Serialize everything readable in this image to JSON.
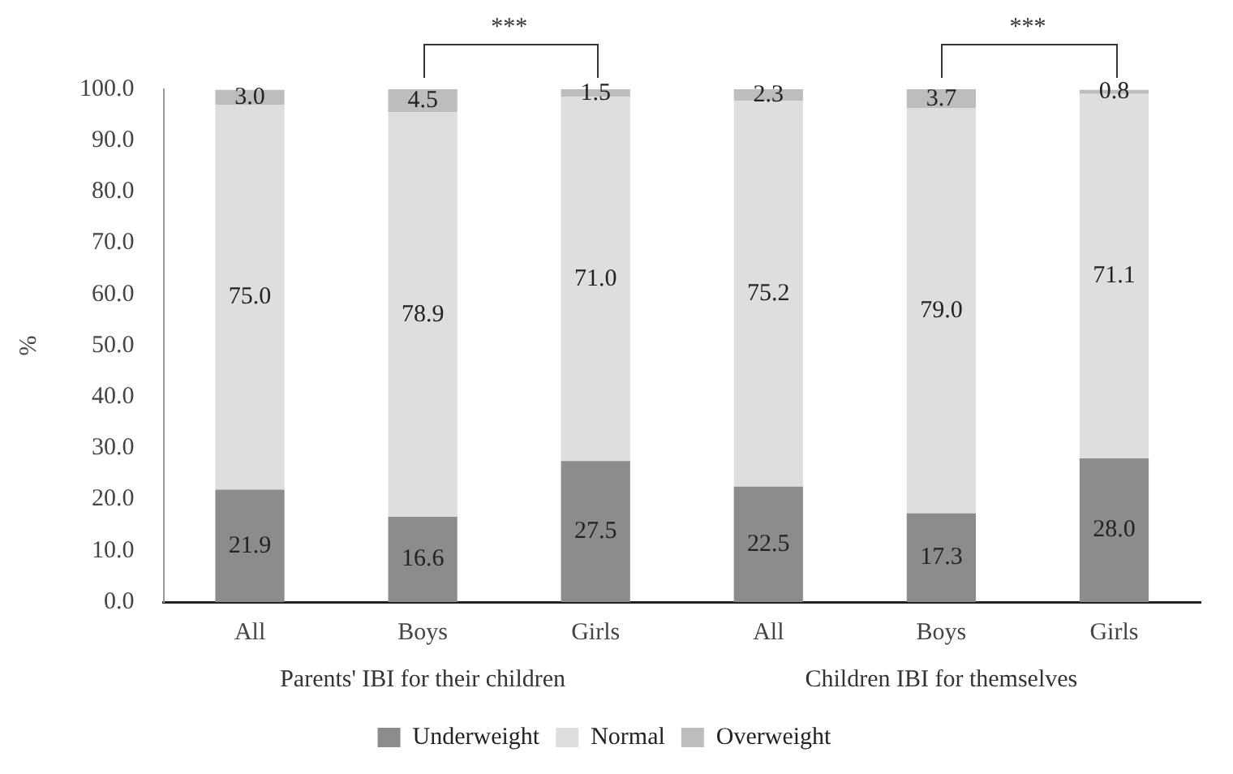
{
  "chart_data": {
    "type": "bar",
    "stacked": true,
    "ylabel": "%",
    "categories": [
      "All",
      "Boys",
      "Girls",
      "All",
      "Boys",
      "Girls"
    ],
    "series": [
      {
        "name": "Underweight",
        "color": "#8c8c8c",
        "values": [
          21.9,
          16.6,
          27.5,
          22.5,
          17.3,
          28.0
        ],
        "value_labels": [
          "21.9",
          "16.6",
          "27.5",
          "22.5",
          "17.3",
          "28.0"
        ]
      },
      {
        "name": "Normal",
        "color": "#dedede",
        "values": [
          75.0,
          78.9,
          71.0,
          75.2,
          79.0,
          71.1
        ],
        "value_labels": [
          "75.0",
          "78.9",
          "71.0",
          "75.2",
          "79.0",
          "71.1"
        ]
      },
      {
        "name": "Overweight",
        "color": "#bdbdbd",
        "values": [
          3.0,
          4.5,
          1.5,
          2.3,
          3.7,
          0.8
        ],
        "value_labels": [
          "3.0",
          "4.5",
          "1.5",
          "2.3",
          "3.7",
          "0.8"
        ]
      }
    ],
    "ylim": [
      0,
      100
    ],
    "yticks": [
      {
        "value": 0,
        "label": "0.0"
      },
      {
        "value": 10,
        "label": "10.0"
      },
      {
        "value": 20,
        "label": "20.0"
      },
      {
        "value": 30,
        "label": "30.0"
      },
      {
        "value": 40,
        "label": "40.0"
      },
      {
        "value": 50,
        "label": "50.0"
      },
      {
        "value": 60,
        "label": "60.0"
      },
      {
        "value": 70,
        "label": "70.0"
      },
      {
        "value": 80,
        "label": "80.0"
      },
      {
        "value": 90,
        "label": "90.0"
      },
      {
        "value": 100,
        "label": "100.0"
      }
    ],
    "grid": false,
    "legend": "bottom",
    "annotations": [
      "***",
      "***",
      "Parents' IBI for their children",
      "Children IBI for themselves"
    ]
  }
}
